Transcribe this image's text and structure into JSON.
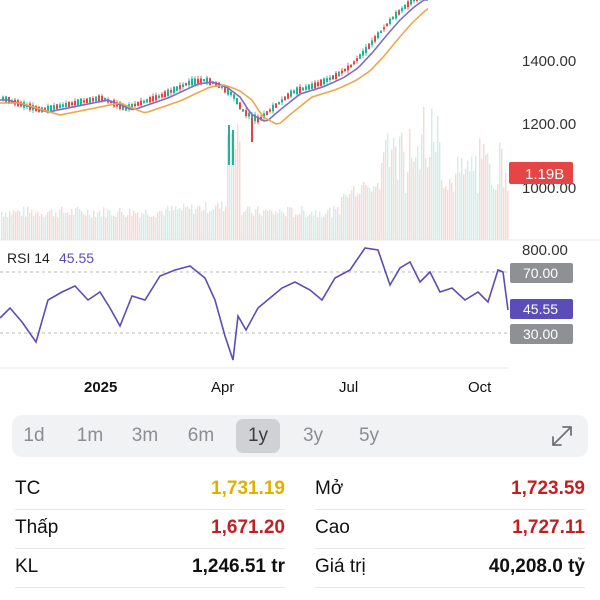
{
  "chart_data": [
    {
      "type": "candlestick",
      "y_ticks": [
        "1400.00",
        "1200.00",
        "1000.00"
      ],
      "volume_badge": "1.19B",
      "x_ticks": [
        "2025",
        "Apr",
        "Jul",
        "Oct"
      ],
      "moving_average_colors": [
        "#7b6fc6",
        "#f0a64a"
      ],
      "up_color": "#22b39a",
      "down_color": "#e64545"
    },
    {
      "type": "line",
      "label": "RSI 14",
      "current_value": "45.55",
      "y_ticks": [
        "800.00"
      ],
      "levels": [
        "70.00",
        "30.00"
      ],
      "line_color": "#5b4db8"
    }
  ],
  "range_selector": {
    "options": [
      "1d",
      "1m",
      "3m",
      "6m",
      "1y",
      "3y",
      "5y"
    ],
    "selected": "1y"
  },
  "stats": {
    "tc": {
      "label": "TC",
      "value": "1,731.19",
      "color": "#e0b000"
    },
    "open": {
      "label": "Mở",
      "value": "1,723.59",
      "color": "#c41e1e"
    },
    "low": {
      "label": "Thấp",
      "value": "1,671.20",
      "color": "#c41e1e"
    },
    "high": {
      "label": "Cao",
      "value": "1,727.11",
      "color": "#c41e1e"
    },
    "volume": {
      "label": "KL",
      "value": "1,246.51 tr",
      "color": "#111111"
    },
    "value": {
      "label": "Giá trị",
      "value": "40,208.0 tỷ",
      "color": "#111111"
    }
  }
}
